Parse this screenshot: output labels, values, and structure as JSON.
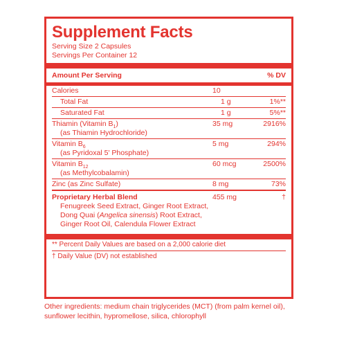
{
  "title": "Supplement Facts",
  "serving_size": "Serving Size 2 Capsules",
  "servings_per_container": "Servings Per Container 12",
  "header": {
    "amount": "Amount Per Serving",
    "dv": "% DV"
  },
  "rows": {
    "calories": {
      "name": "Calories",
      "amount": "10",
      "dv": ""
    },
    "total_fat": {
      "name": "Total Fat",
      "amount": "1 g",
      "dv": "1%**"
    },
    "sat_fat": {
      "name": "Saturated Fat",
      "amount": "1 g",
      "dv": "5%**"
    },
    "thiamin": {
      "name": "Thiamin (Vitamin B",
      "sub": "1",
      "name_end": ")",
      "detail": "(as Thiamin Hydrochloride)",
      "amount": "35 mg",
      "dv": "2916%"
    },
    "b6": {
      "name": "Vitamin B",
      "sub": "6",
      "detail": "(as Pyridoxal 5' Phosphate)",
      "amount": "5 mg",
      "dv": "294%"
    },
    "b12": {
      "name": "Vitamin B",
      "sub": "12",
      "detail": "(as Methylcobalamin)",
      "amount": "60 mcg",
      "dv": "2500%"
    },
    "zinc": {
      "name": "Zinc (as Zinc Sulfate)",
      "amount": "8 mg",
      "dv": "73%"
    },
    "blend": {
      "name": "Proprietary Herbal Blend",
      "amount": "455 mg",
      "dv": "†",
      "line1": "Fenugreek Seed Extract, Ginger Root Extract,",
      "line2_a": "Dong Quai (",
      "line2_italic": "Angelica sinensis",
      "line2_b": ") Root Extract,",
      "line3": "Ginger Root Oil, Calendula Flower Extract"
    }
  },
  "notes": {
    "percent": "** Percent Daily Values are based on a 2,000 calorie diet",
    "dagger": "† Daily Value (DV) not established"
  },
  "other_ingredients": "Other ingredients: medium chain triglycerides (MCT) (from palm kernel oil), sunflower lecithin, hypromellose, silica, chlorophyll",
  "colors": {
    "accent": "#e3342f"
  }
}
